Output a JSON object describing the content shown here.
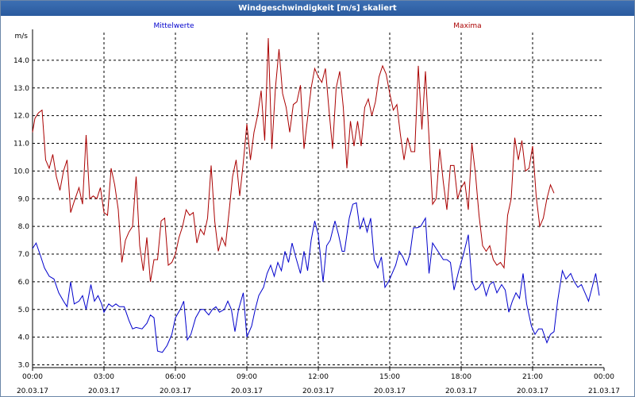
{
  "window": {
    "title": "Windgeschwindigkeit [m/s] skaliert"
  },
  "chart_data": {
    "type": "line",
    "title": "Windgeschwindigkeit [m/s] skaliert",
    "ylabel": "m/s",
    "xlabel": "",
    "ylim": [
      2.9,
      15.0
    ],
    "yticks": [
      "3.0",
      "4.0",
      "5.0",
      "6.0",
      "7.0",
      "8.0",
      "9.0",
      "10.0",
      "11.0",
      "12.0",
      "13.0",
      "14.0"
    ],
    "xlim": [
      0,
      24
    ],
    "xticks": [
      {
        "time": "00:00",
        "date": "20.03.17"
      },
      {
        "time": "03:00",
        "date": "20.03.17"
      },
      {
        "time": "06:00",
        "date": "20.03.17"
      },
      {
        "time": "09:00",
        "date": "20.03.17"
      },
      {
        "time": "12:00",
        "date": "20.03.17"
      },
      {
        "time": "15:00",
        "date": "20.03.17"
      },
      {
        "time": "18:00",
        "date": "20.03.17"
      },
      {
        "time": "21:00",
        "date": "20.03.17"
      },
      {
        "time": "00:00",
        "date": "21.03.17"
      }
    ],
    "grid": true,
    "series": [
      {
        "name": "Mittelwerte",
        "color": "#0000cc",
        "values": [
          [
            0.0,
            7.2
          ],
          [
            0.15,
            7.4
          ],
          [
            0.35,
            6.9
          ],
          [
            0.5,
            6.5
          ],
          [
            0.7,
            6.2
          ],
          [
            0.9,
            6.1
          ],
          [
            1.1,
            5.6
          ],
          [
            1.3,
            5.3
          ],
          [
            1.45,
            5.1
          ],
          [
            1.6,
            6.0
          ],
          [
            1.75,
            5.2
          ],
          [
            1.95,
            5.3
          ],
          [
            2.1,
            5.5
          ],
          [
            2.25,
            5.0
          ],
          [
            2.45,
            5.9
          ],
          [
            2.6,
            5.3
          ],
          [
            2.75,
            5.5
          ],
          [
            2.9,
            5.2
          ],
          [
            3.0,
            4.9
          ],
          [
            3.2,
            5.2
          ],
          [
            3.35,
            5.1
          ],
          [
            3.5,
            5.2
          ],
          [
            3.65,
            5.1
          ],
          [
            3.85,
            5.1
          ],
          [
            4.05,
            4.6
          ],
          [
            4.2,
            4.3
          ],
          [
            4.35,
            4.35
          ],
          [
            4.6,
            4.3
          ],
          [
            4.8,
            4.5
          ],
          [
            4.95,
            4.8
          ],
          [
            5.1,
            4.7
          ],
          [
            5.25,
            3.5
          ],
          [
            5.45,
            3.45
          ],
          [
            5.65,
            3.7
          ],
          [
            5.85,
            4.1
          ],
          [
            6.0,
            4.7
          ],
          [
            6.2,
            5.0
          ],
          [
            6.35,
            5.3
          ],
          [
            6.5,
            3.9
          ],
          [
            6.65,
            4.1
          ],
          [
            6.85,
            4.7
          ],
          [
            7.05,
            5.0
          ],
          [
            7.2,
            5.0
          ],
          [
            7.4,
            4.8
          ],
          [
            7.55,
            5.0
          ],
          [
            7.7,
            5.1
          ],
          [
            7.85,
            4.9
          ],
          [
            8.05,
            5.0
          ],
          [
            8.2,
            5.3
          ],
          [
            8.35,
            5.0
          ],
          [
            8.5,
            4.2
          ],
          [
            8.65,
            5.0
          ],
          [
            8.85,
            5.6
          ],
          [
            9.0,
            4.0
          ],
          [
            9.2,
            4.4
          ],
          [
            9.35,
            5.0
          ],
          [
            9.5,
            5.5
          ],
          [
            9.7,
            5.8
          ],
          [
            9.85,
            6.3
          ],
          [
            10.0,
            6.6
          ],
          [
            10.15,
            6.2
          ],
          [
            10.3,
            6.7
          ],
          [
            10.45,
            6.4
          ],
          [
            10.6,
            7.1
          ],
          [
            10.75,
            6.7
          ],
          [
            10.9,
            7.4
          ],
          [
            11.05,
            6.9
          ],
          [
            11.25,
            6.3
          ],
          [
            11.4,
            7.1
          ],
          [
            11.55,
            6.4
          ],
          [
            11.7,
            7.5
          ],
          [
            11.85,
            8.2
          ],
          [
            12.0,
            7.7
          ],
          [
            12.2,
            6.0
          ],
          [
            12.35,
            7.3
          ],
          [
            12.5,
            7.5
          ],
          [
            12.7,
            8.2
          ],
          [
            12.85,
            7.7
          ],
          [
            13.0,
            7.1
          ],
          [
            13.1,
            7.1
          ],
          [
            13.3,
            8.3
          ],
          [
            13.45,
            8.8
          ],
          [
            13.6,
            8.85
          ],
          [
            13.75,
            7.9
          ],
          [
            13.9,
            8.3
          ],
          [
            14.05,
            7.8
          ],
          [
            14.2,
            8.3
          ],
          [
            14.35,
            6.8
          ],
          [
            14.5,
            6.5
          ],
          [
            14.65,
            6.9
          ],
          [
            14.8,
            5.8
          ],
          [
            14.95,
            6.0
          ],
          [
            15.05,
            6.2
          ],
          [
            15.25,
            6.6
          ],
          [
            15.4,
            7.1
          ],
          [
            15.55,
            6.9
          ],
          [
            15.7,
            6.6
          ],
          [
            15.85,
            7.0
          ],
          [
            16.0,
            7.95
          ],
          [
            16.15,
            7.95
          ],
          [
            16.3,
            8.0
          ],
          [
            16.5,
            8.3
          ],
          [
            16.65,
            6.3
          ],
          [
            16.8,
            7.4
          ],
          [
            16.95,
            7.2
          ],
          [
            17.1,
            7.0
          ],
          [
            17.25,
            6.8
          ],
          [
            17.4,
            6.8
          ],
          [
            17.55,
            6.7
          ],
          [
            17.7,
            5.7
          ],
          [
            17.9,
            6.4
          ],
          [
            18.1,
            7.0
          ],
          [
            18.3,
            7.7
          ],
          [
            18.45,
            6.0
          ],
          [
            18.6,
            5.7
          ],
          [
            18.75,
            5.8
          ],
          [
            18.9,
            6.0
          ],
          [
            19.05,
            5.5
          ],
          [
            19.2,
            5.9
          ],
          [
            19.35,
            6.0
          ],
          [
            19.5,
            5.6
          ],
          [
            19.7,
            5.9
          ],
          [
            19.85,
            5.7
          ],
          [
            20.0,
            4.9
          ],
          [
            20.15,
            5.3
          ],
          [
            20.3,
            5.6
          ],
          [
            20.45,
            5.4
          ],
          [
            20.6,
            6.3
          ],
          [
            20.75,
            5.2
          ],
          [
            20.95,
            4.4
          ],
          [
            21.1,
            4.1
          ],
          [
            21.25,
            4.3
          ],
          [
            21.4,
            4.3
          ],
          [
            21.6,
            3.8
          ],
          [
            21.75,
            4.1
          ],
          [
            21.9,
            4.2
          ],
          [
            22.05,
            5.3
          ],
          [
            22.25,
            6.4
          ],
          [
            22.4,
            6.1
          ],
          [
            22.6,
            6.3
          ],
          [
            22.75,
            6.0
          ],
          [
            22.9,
            5.8
          ],
          [
            23.05,
            5.9
          ],
          [
            23.2,
            5.6
          ],
          [
            23.35,
            5.3
          ],
          [
            23.5,
            5.8
          ],
          [
            23.65,
            6.3
          ],
          [
            23.8,
            5.5
          ]
        ]
      },
      {
        "name": "Maxima",
        "color": "#aa0000",
        "values": [
          [
            0.0,
            11.4
          ],
          [
            0.1,
            11.9
          ],
          [
            0.25,
            12.1
          ],
          [
            0.4,
            12.2
          ],
          [
            0.55,
            10.4
          ],
          [
            0.7,
            10.1
          ],
          [
            0.85,
            10.6
          ],
          [
            1.0,
            9.8
          ],
          [
            1.15,
            9.3
          ],
          [
            1.3,
            10.0
          ],
          [
            1.45,
            10.4
          ],
          [
            1.6,
            8.5
          ],
          [
            1.75,
            8.9
          ],
          [
            1.95,
            9.4
          ],
          [
            2.1,
            8.8
          ],
          [
            2.25,
            11.3
          ],
          [
            2.4,
            9.0
          ],
          [
            2.55,
            9.1
          ],
          [
            2.7,
            9.0
          ],
          [
            2.85,
            9.4
          ],
          [
            3.0,
            8.5
          ],
          [
            3.15,
            8.4
          ],
          [
            3.3,
            10.1
          ],
          [
            3.45,
            9.5
          ],
          [
            3.6,
            8.6
          ],
          [
            3.75,
            6.7
          ],
          [
            3.9,
            7.5
          ],
          [
            4.05,
            7.8
          ],
          [
            4.2,
            8.0
          ],
          [
            4.35,
            9.8
          ],
          [
            4.5,
            7.3
          ],
          [
            4.65,
            6.4
          ],
          [
            4.8,
            7.6
          ],
          [
            4.95,
            6.0
          ],
          [
            5.1,
            6.8
          ],
          [
            5.25,
            6.8
          ],
          [
            5.4,
            8.2
          ],
          [
            5.55,
            8.3
          ],
          [
            5.7,
            6.6
          ],
          [
            5.85,
            6.7
          ],
          [
            6.0,
            7.0
          ],
          [
            6.15,
            7.6
          ],
          [
            6.3,
            8.0
          ],
          [
            6.45,
            8.6
          ],
          [
            6.6,
            8.4
          ],
          [
            6.75,
            8.5
          ],
          [
            6.9,
            7.4
          ],
          [
            7.05,
            7.9
          ],
          [
            7.2,
            7.7
          ],
          [
            7.35,
            8.3
          ],
          [
            7.5,
            10.2
          ],
          [
            7.65,
            8.2
          ],
          [
            7.8,
            7.1
          ],
          [
            7.95,
            7.6
          ],
          [
            8.1,
            7.3
          ],
          [
            8.25,
            8.5
          ],
          [
            8.4,
            9.8
          ],
          [
            8.55,
            10.4
          ],
          [
            8.7,
            9.1
          ],
          [
            8.85,
            10.3
          ],
          [
            9.0,
            11.7
          ],
          [
            9.15,
            10.4
          ],
          [
            9.3,
            11.4
          ],
          [
            9.45,
            12.0
          ],
          [
            9.6,
            12.9
          ],
          [
            9.75,
            11.1
          ],
          [
            9.9,
            14.8
          ],
          [
            10.05,
            10.8
          ],
          [
            10.2,
            13.0
          ],
          [
            10.35,
            14.4
          ],
          [
            10.5,
            12.8
          ],
          [
            10.65,
            12.3
          ],
          [
            10.8,
            11.4
          ],
          [
            10.95,
            12.4
          ],
          [
            11.1,
            12.5
          ],
          [
            11.25,
            13.1
          ],
          [
            11.4,
            10.8
          ],
          [
            11.55,
            11.9
          ],
          [
            11.7,
            13.0
          ],
          [
            11.85,
            13.7
          ],
          [
            12.0,
            13.4
          ],
          [
            12.15,
            13.2
          ],
          [
            12.3,
            13.7
          ],
          [
            12.45,
            12.2
          ],
          [
            12.6,
            10.8
          ],
          [
            12.75,
            13.0
          ],
          [
            12.9,
            13.6
          ],
          [
            13.05,
            12.3
          ],
          [
            13.2,
            10.1
          ],
          [
            13.35,
            11.8
          ],
          [
            13.5,
            10.9
          ],
          [
            13.65,
            11.8
          ],
          [
            13.8,
            10.9
          ],
          [
            13.95,
            12.3
          ],
          [
            14.1,
            12.6
          ],
          [
            14.25,
            12.0
          ],
          [
            14.4,
            12.5
          ],
          [
            14.55,
            13.4
          ],
          [
            14.7,
            13.8
          ],
          [
            14.85,
            13.5
          ],
          [
            15.0,
            12.8
          ],
          [
            15.15,
            12.2
          ],
          [
            15.3,
            12.4
          ],
          [
            15.45,
            11.3
          ],
          [
            15.6,
            10.4
          ],
          [
            15.75,
            11.2
          ],
          [
            15.9,
            10.7
          ],
          [
            16.05,
            10.7
          ],
          [
            16.2,
            13.8
          ],
          [
            16.35,
            11.5
          ],
          [
            16.5,
            13.6
          ],
          [
            16.65,
            11.2
          ],
          [
            16.8,
            8.8
          ],
          [
            16.95,
            9.0
          ],
          [
            17.1,
            10.8
          ],
          [
            17.25,
            9.6
          ],
          [
            17.4,
            8.6
          ],
          [
            17.55,
            10.2
          ],
          [
            17.7,
            10.2
          ],
          [
            17.85,
            9.0
          ],
          [
            18.0,
            9.4
          ],
          [
            18.15,
            9.6
          ],
          [
            18.3,
            8.6
          ],
          [
            18.45,
            11.0
          ],
          [
            18.6,
            9.9
          ],
          [
            18.75,
            8.4
          ],
          [
            18.9,
            7.3
          ],
          [
            19.05,
            7.1
          ],
          [
            19.2,
            7.3
          ],
          [
            19.35,
            6.8
          ],
          [
            19.5,
            6.6
          ],
          [
            19.65,
            6.7
          ],
          [
            19.8,
            6.5
          ],
          [
            19.95,
            8.4
          ],
          [
            20.1,
            9.0
          ],
          [
            20.25,
            11.2
          ],
          [
            20.4,
            10.4
          ],
          [
            20.55,
            11.1
          ],
          [
            20.7,
            10.0
          ],
          [
            20.85,
            10.1
          ],
          [
            21.0,
            10.9
          ],
          [
            21.15,
            9.1
          ],
          [
            21.3,
            8.0
          ],
          [
            21.45,
            8.3
          ],
          [
            21.6,
            9.0
          ],
          [
            21.75,
            9.5
          ],
          [
            21.9,
            9.2
          ]
        ]
      }
    ]
  }
}
